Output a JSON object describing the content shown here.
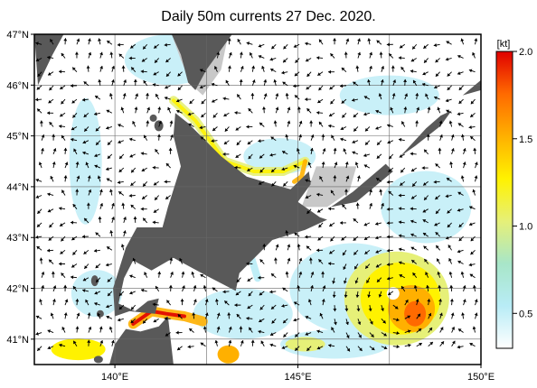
{
  "title": "Daily 50m currents 27 Dec. 2020.",
  "map": {
    "lon_range": [
      137.8,
      150.0
    ],
    "lat_range": [
      40.5,
      47.0
    ],
    "lat_ticks": [
      {
        "value": 47,
        "label": "47°N"
      },
      {
        "value": 46,
        "label": "46°N"
      },
      {
        "value": 45,
        "label": "45°N"
      },
      {
        "value": 44,
        "label": "44°N"
      },
      {
        "value": 43,
        "label": "43°N"
      },
      {
        "value": 42,
        "label": "42°N"
      },
      {
        "value": 41,
        "label": "41°N"
      }
    ],
    "lon_ticks": [
      {
        "value": 140,
        "label": "140°E"
      },
      {
        "value": 145,
        "label": "145°E"
      },
      {
        "value": 150,
        "label": "150°E"
      }
    ],
    "grid": true
  },
  "colorbar": {
    "unit": "[kt]",
    "range": [
      0.3,
      2.0
    ],
    "ticks": [
      {
        "value": 2.0,
        "label": "2.0"
      },
      {
        "value": 1.5,
        "label": "1.5"
      },
      {
        "value": 1.0,
        "label": "1.0"
      },
      {
        "value": 0.5,
        "label": "0.5"
      }
    ],
    "colors": [
      "#ffffff",
      "#b8ecf6",
      "#a8e6c8",
      "#e6f078",
      "#fff200",
      "#ffb000",
      "#ff6a00",
      "#e00000"
    ]
  },
  "colors": {
    "land": "#595959",
    "shelf": "#c8c8c8",
    "arrow": "#000000",
    "frame": "#000000"
  }
}
